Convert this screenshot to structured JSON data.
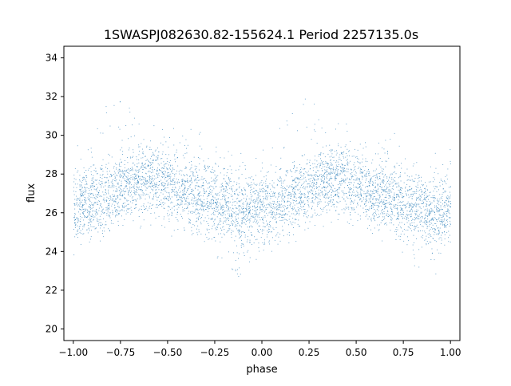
{
  "chart_data": {
    "type": "scatter",
    "title": "1SWASPJ082630.82-155624.1 Period 2257135.0s",
    "xlabel": "phase",
    "ylabel": "flux",
    "xlim": [
      -1.05,
      1.05
    ],
    "ylim": [
      19.4,
      34.6
    ],
    "xticks": [
      -1.0,
      -0.75,
      -0.5,
      -0.25,
      0.0,
      0.25,
      0.5,
      0.75,
      1.0
    ],
    "xtick_labels": [
      "−1.00",
      "−0.75",
      "−0.50",
      "−0.25",
      "0.00",
      "0.25",
      "0.50",
      "0.75",
      "1.00"
    ],
    "yticks": [
      20,
      22,
      24,
      26,
      28,
      30,
      32,
      34
    ],
    "ytick_labels": [
      "20",
      "22",
      "24",
      "26",
      "28",
      "30",
      "32",
      "34"
    ],
    "grid": false,
    "marker_color": "#1f77b4",
    "series": [
      {
        "points_description": "phase-folded light curve, mirrored over two cycles",
        "profile": [
          {
            "phase": -1.0,
            "median": 26.3,
            "low": 23.8,
            "high": 29.7
          },
          {
            "phase": -0.9,
            "median": 26.5,
            "low": 24.5,
            "high": 30.5
          },
          {
            "phase": -0.8,
            "median": 27.0,
            "low": 24.9,
            "high": 32.3
          },
          {
            "phase": -0.7,
            "median": 27.6,
            "low": 25.1,
            "high": 31.6
          },
          {
            "phase": -0.6,
            "median": 27.8,
            "low": 25.2,
            "high": 30.8
          },
          {
            "phase": -0.5,
            "median": 27.5,
            "low": 25.2,
            "high": 30.6
          },
          {
            "phase": -0.4,
            "median": 27.0,
            "low": 24.9,
            "high": 30.4
          },
          {
            "phase": -0.3,
            "median": 26.8,
            "low": 24.7,
            "high": 30.2
          },
          {
            "phase": -0.2,
            "median": 26.4,
            "low": 23.0,
            "high": 29.8
          },
          {
            "phase": -0.1,
            "median": 26.0,
            "low": 22.5,
            "high": 29.0
          },
          {
            "phase": 0.0,
            "median": 26.3,
            "low": 23.8,
            "high": 29.7
          },
          {
            "phase": 0.1,
            "median": 26.5,
            "low": 24.5,
            "high": 30.5
          },
          {
            "phase": 0.2,
            "median": 27.0,
            "low": 24.9,
            "high": 32.3
          },
          {
            "phase": 0.3,
            "median": 27.6,
            "low": 25.1,
            "high": 31.6
          },
          {
            "phase": 0.4,
            "median": 27.8,
            "low": 25.2,
            "high": 30.8
          },
          {
            "phase": 0.5,
            "median": 27.5,
            "low": 25.2,
            "high": 30.6
          },
          {
            "phase": 0.6,
            "median": 27.0,
            "low": 24.9,
            "high": 30.4
          },
          {
            "phase": 0.7,
            "median": 26.8,
            "low": 24.7,
            "high": 30.2
          },
          {
            "phase": 0.8,
            "median": 26.4,
            "low": 23.0,
            "high": 29.8
          },
          {
            "phase": 0.9,
            "median": 26.0,
            "low": 22.5,
            "high": 29.0
          },
          {
            "phase": 1.0,
            "median": 26.3,
            "low": 23.8,
            "high": 29.7
          }
        ]
      }
    ]
  }
}
